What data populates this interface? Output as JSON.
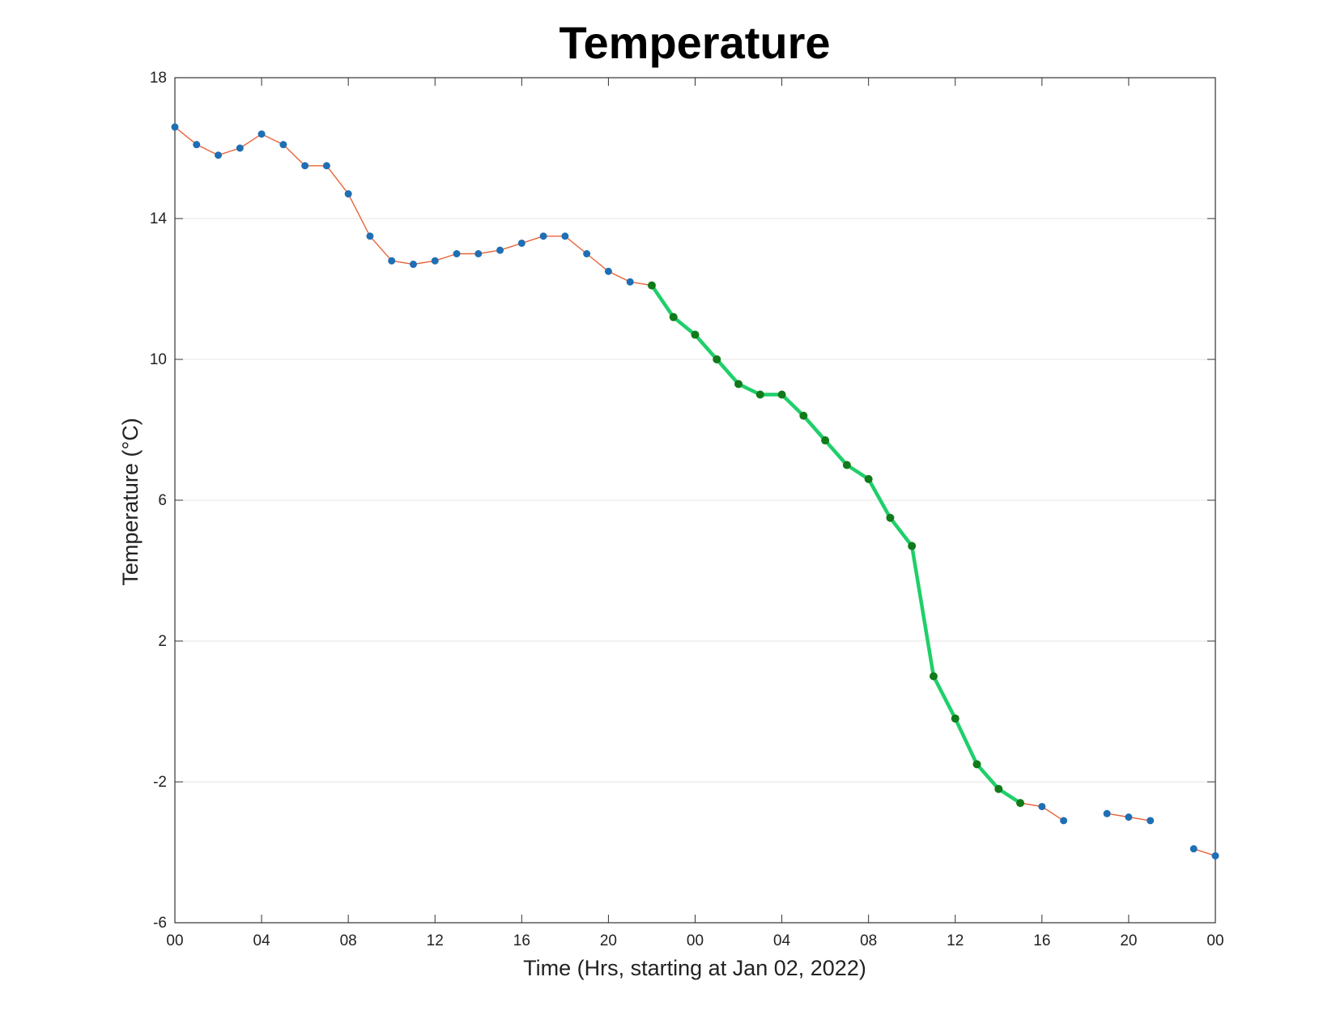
{
  "chart_data": {
    "type": "line",
    "title": "Temperature",
    "xlabel": "Time (Hrs, starting at Jan 02, 2022)",
    "ylabel": "Temperature (°C)",
    "xlim": [
      0,
      48
    ],
    "ylim": [
      -6,
      18
    ],
    "x_ticks": [
      0,
      4,
      8,
      12,
      16,
      20,
      24,
      28,
      32,
      36,
      40,
      44,
      48
    ],
    "x_tick_labels": [
      "00",
      "04",
      "08",
      "12",
      "16",
      "20",
      "00",
      "04",
      "08",
      "12",
      "16",
      "20",
      "00"
    ],
    "y_ticks": [
      -6,
      -2,
      2,
      6,
      10,
      14,
      18
    ],
    "y_tick_labels": [
      "-6",
      "-2",
      "2",
      "6",
      "10",
      "14",
      "18"
    ],
    "grid": "horizontal",
    "colors": {
      "base_line": "#e8643a",
      "base_marker": "#1f6fb4",
      "highlight_line": "#1fcf6a",
      "highlight_marker": "#117a1a",
      "grid": "#e6e6e6",
      "axis": "#333333"
    },
    "series": [
      {
        "role": "base",
        "x": [
          0,
          1,
          2,
          3,
          4,
          5,
          6,
          7,
          8,
          9,
          10,
          11,
          12,
          13,
          14,
          15,
          16,
          17,
          18,
          19,
          20,
          21,
          22,
          23,
          24,
          25,
          26,
          27,
          28,
          29,
          30,
          31,
          32,
          33,
          34,
          35,
          36,
          37,
          38,
          39,
          40,
          41,
          42,
          43,
          44,
          45,
          46,
          47,
          48
        ],
        "y": [
          16.6,
          16.1,
          15.8,
          16.0,
          16.4,
          16.1,
          15.5,
          15.5,
          14.7,
          13.5,
          12.8,
          12.7,
          12.8,
          13.0,
          13.0,
          13.1,
          13.3,
          13.5,
          13.5,
          13.0,
          12.5,
          12.2,
          12.1,
          11.2,
          10.7,
          10.0,
          9.3,
          9.0,
          9.0,
          8.4,
          7.7,
          7.0,
          6.6,
          5.5,
          4.7,
          1.0,
          -0.2,
          -1.5,
          -2.2,
          -2.6,
          -2.7,
          -3.1,
          null,
          -2.9,
          -3.0,
          -3.1,
          null,
          -3.9,
          -4.1
        ]
      },
      {
        "role": "highlight",
        "x": [
          22,
          23,
          24,
          25,
          26,
          27,
          28,
          29,
          30,
          31,
          32,
          33,
          34,
          35,
          36,
          37,
          38,
          39
        ],
        "y": [
          12.1,
          11.2,
          10.7,
          10.0,
          9.3,
          9.0,
          9.0,
          8.4,
          7.7,
          7.0,
          6.6,
          5.5,
          4.7,
          1.0,
          -0.2,
          -1.5,
          -2.2,
          -2.6
        ]
      }
    ]
  }
}
